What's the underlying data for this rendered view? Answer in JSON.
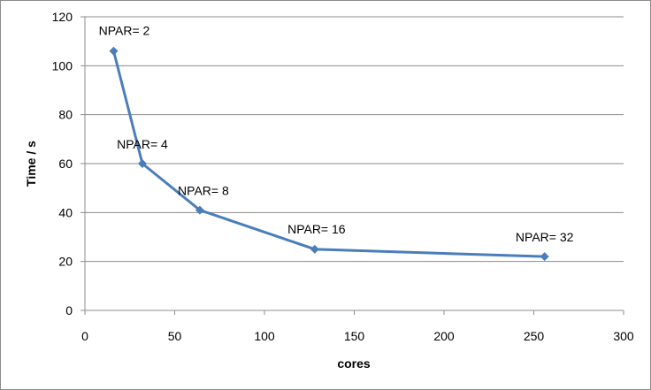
{
  "chart_data": {
    "type": "line",
    "title": "",
    "xlabel": "cores",
    "ylabel": "Time / s",
    "xlim": [
      0,
      300
    ],
    "ylim": [
      0,
      120
    ],
    "xticks": [
      0,
      50,
      100,
      150,
      200,
      250,
      300
    ],
    "yticks": [
      0,
      20,
      40,
      60,
      80,
      100,
      120
    ],
    "grid": "horizontal",
    "legend": "none",
    "series": [
      {
        "color": "#4a7ebb",
        "marker": "diamond",
        "x": [
          16,
          32,
          64,
          128,
          256
        ],
        "y": [
          106,
          60,
          41,
          25,
          22
        ],
        "labels": [
          "NPAR= 2",
          "NPAR= 4",
          "NPAR= 8",
          "NPAR= 16",
          "NPAR= 32"
        ]
      }
    ]
  }
}
